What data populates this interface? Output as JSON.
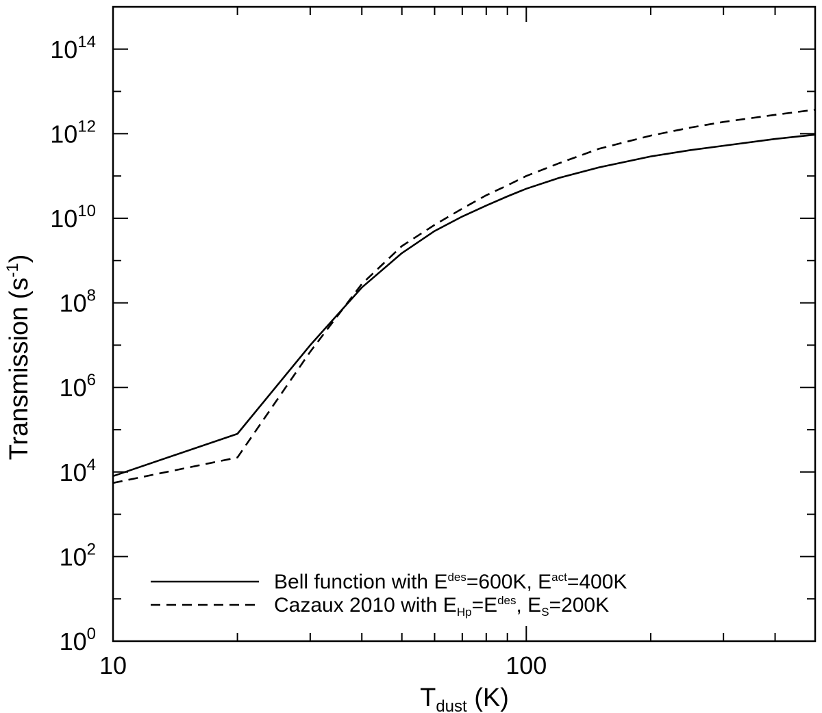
{
  "chart_data": {
    "type": "line",
    "title": "",
    "xlabel": {
      "main": "T",
      "sub": "dust",
      "rest": " (K)"
    },
    "ylabel": {
      "main": "Transmission (s",
      "sup": "-1",
      "rest": ")"
    },
    "xscale": "log",
    "yscale": "log",
    "xlim": [
      10,
      500
    ],
    "ylim": [
      1,
      1000000000000000.0
    ],
    "grid": false,
    "legend_position": "bottom-center",
    "x_tick_labels": [
      {
        "value": 10,
        "label": "10"
      },
      {
        "value": 100,
        "label": "100"
      }
    ],
    "y_tick_labels": [
      {
        "value": 1,
        "base": "10",
        "exp": "0"
      },
      {
        "value": 100,
        "base": "10",
        "exp": "2"
      },
      {
        "value": 10000,
        "base": "10",
        "exp": "4"
      },
      {
        "value": 1000000,
        "base": "10",
        "exp": "6"
      },
      {
        "value": 100000000,
        "base": "10",
        "exp": "8"
      },
      {
        "value": 10000000000,
        "base": "10",
        "exp": "10"
      },
      {
        "value": 1000000000000,
        "base": "10",
        "exp": "12"
      },
      {
        "value": 100000000000000,
        "base": "10",
        "exp": "14"
      }
    ],
    "series": [
      {
        "style": "solid",
        "legend": [
          {
            "t": "Bell function with E"
          },
          {
            "t": "des",
            "sup": true
          },
          {
            "t": "=600K, E"
          },
          {
            "t": "act",
            "sup": true
          },
          {
            "t": "=400K"
          }
        ],
        "x": [
          10,
          20,
          30,
          40,
          50,
          60,
          70,
          80,
          90,
          100,
          120,
          150,
          200,
          250,
          300,
          400,
          500
        ],
        "y": [
          8000.0,
          80000.0,
          10000000.0,
          230000000.0,
          1500000000.0,
          5000000000.0,
          11000000000.0,
          20000000000.0,
          33000000000.0,
          50000000000.0,
          90000000000.0,
          160000000000.0,
          290000000000.0,
          410000000000.0,
          520000000000.0,
          750000000000.0,
          950000000000.0
        ]
      },
      {
        "style": "dashed",
        "legend": [
          {
            "t": "Cazaux 2010 with E"
          },
          {
            "t": "Hp",
            "sub": true
          },
          {
            "t": "=E"
          },
          {
            "t": "des",
            "sup": true
          },
          {
            "t": ", E"
          },
          {
            "t": "S",
            "sub": true
          },
          {
            "t": "=200K"
          }
        ],
        "x": [
          10,
          20,
          30,
          40,
          50,
          60,
          70,
          80,
          90,
          100,
          120,
          150,
          200,
          250,
          300,
          400,
          500
        ],
        "y": [
          5500.0,
          22000.0,
          7000000.0,
          280000000.0,
          2200000000.0,
          7000000000.0,
          17000000000.0,
          35000000000.0,
          60000000000.0,
          100000000000.0,
          200000000000.0,
          440000000000.0,
          900000000000.0,
          1400000000000.0,
          1900000000000.0,
          2800000000000.0,
          3700000000000.0
        ]
      }
    ]
  }
}
